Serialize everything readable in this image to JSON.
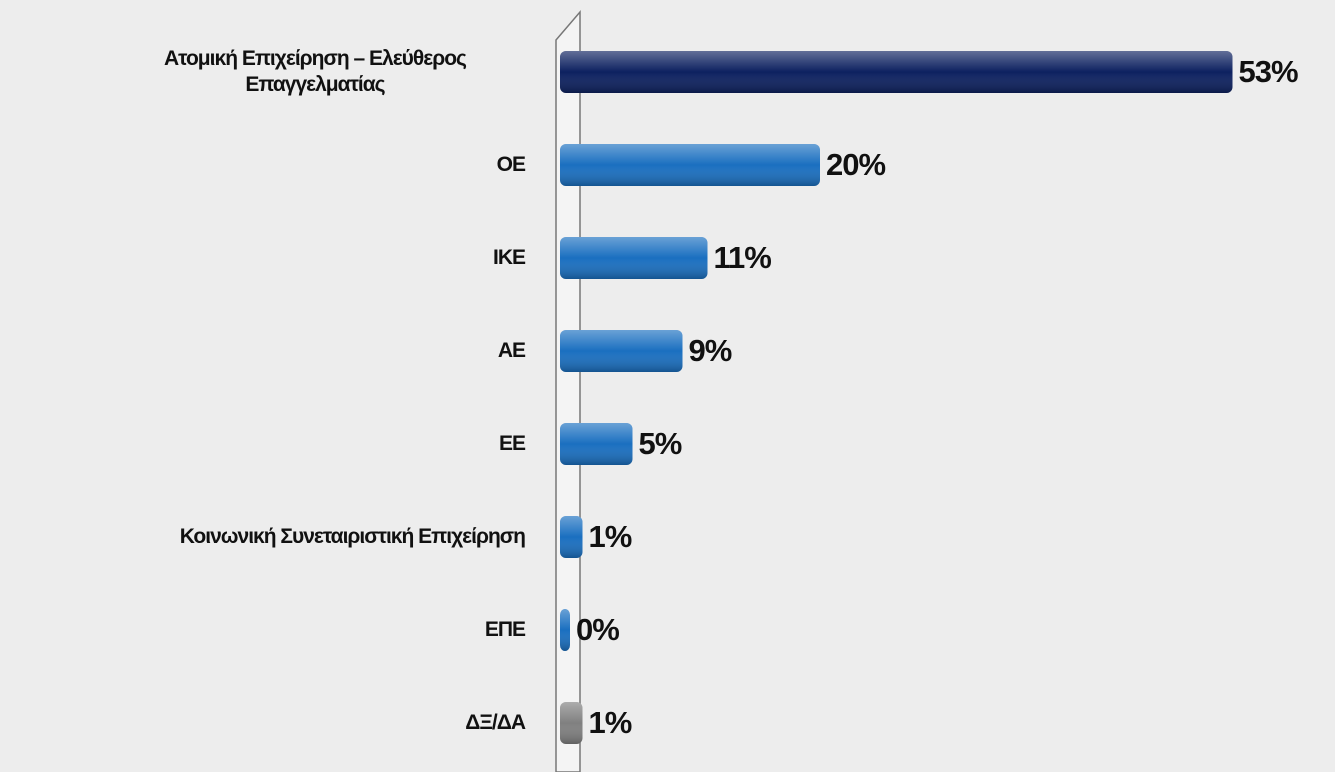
{
  "chart_data": {
    "type": "barh",
    "categories": [
      "Ατομική Επιχείρηση – Ελεύθερος Επαγγελματίας",
      "ΟΕ",
      "ΙΚΕ",
      "ΑΕ",
      "ΕΕ",
      "Κοινωνική Συνεταιριστική Επιχείρηση",
      "ΕΠΕ",
      "ΔΞ/ΔΑ"
    ],
    "values": [
      53,
      20,
      11,
      9,
      5,
      1,
      0,
      1
    ],
    "value_labels": [
      "53%",
      "20%",
      "11%",
      "9%",
      "5%",
      "1%",
      "0%",
      "1%"
    ],
    "colors": [
      "#0d2160",
      "#1a6fc0",
      "#1a6fc0",
      "#1a6fc0",
      "#1a6fc0",
      "#1a6fc0",
      "#1a6fc0",
      "#808080"
    ]
  }
}
